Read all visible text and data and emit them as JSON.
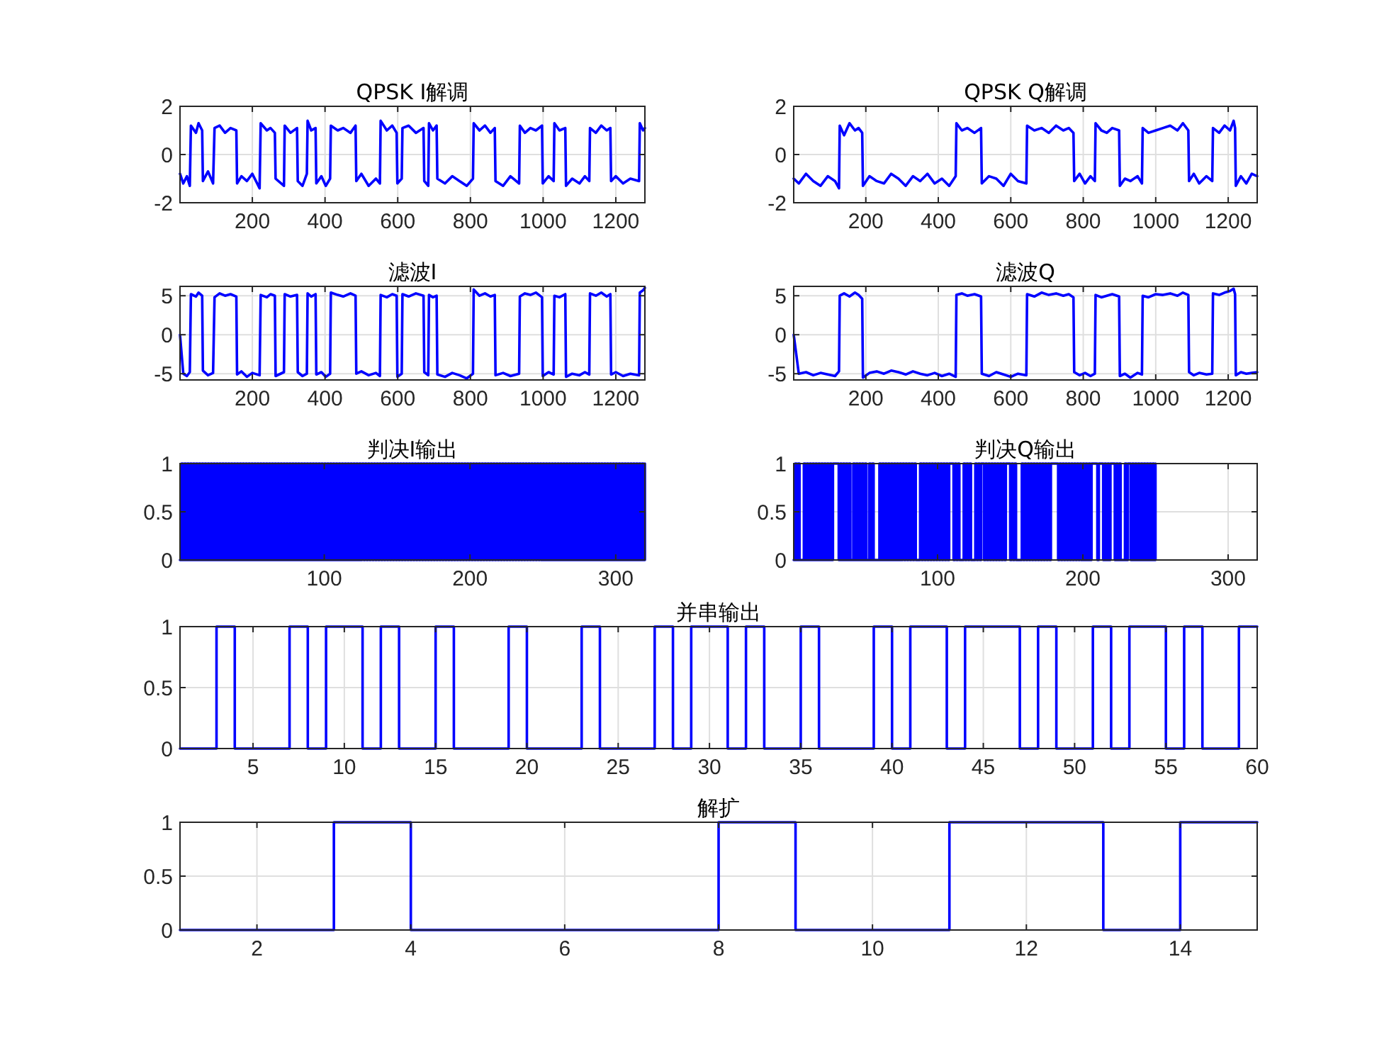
{
  "chart_data": [
    {
      "type": "line",
      "title": "QPSK I解调",
      "xlim": [
        1,
        1280
      ],
      "ylim": [
        -2,
        2
      ],
      "xticks": [
        200,
        400,
        600,
        800,
        1000,
        1200
      ],
      "yticks": [
        -2,
        0,
        2
      ],
      "grid": true,
      "x": [
        1,
        10,
        20,
        28,
        31,
        45,
        52,
        62,
        64,
        78,
        92,
        96,
        110,
        125,
        140,
        156,
        158,
        170,
        185,
        200,
        220,
        223,
        240,
        250,
        262,
        264,
        287,
        289,
        305,
        323,
        325,
        338,
        350,
        352,
        362,
        374,
        376,
        390,
        402,
        414,
        416,
        435,
        450,
        470,
        484,
        486,
        500,
        520,
        540,
        551,
        553,
        570,
        585,
        597,
        599,
        611,
        613,
        630,
        650,
        671,
        673,
        684,
        686,
        697,
        707,
        709,
        730,
        750,
        770,
        790,
        807,
        809,
        825,
        840,
        855,
        867,
        869,
        890,
        910,
        934,
        936,
        950,
        965,
        980,
        997,
        999,
        1015,
        1029,
        1031,
        1045,
        1061,
        1063,
        1080,
        1100,
        1115,
        1127,
        1129,
        1145,
        1160,
        1175,
        1185,
        1187,
        1200,
        1220,
        1240,
        1264,
        1266,
        1275,
        1280
      ],
      "series": [
        {
          "color": "#0000ff",
          "values": [
            -0.8,
            -1.2,
            -0.9,
            -1.3,
            1.2,
            0.9,
            1.3,
            1.0,
            -1.1,
            -0.7,
            -1.2,
            1.1,
            1.2,
            0.9,
            1.1,
            1.0,
            -1.2,
            -0.9,
            -1.1,
            -0.8,
            -1.4,
            1.3,
            1.0,
            1.1,
            0.9,
            -1.0,
            -1.3,
            1.2,
            0.9,
            1.1,
            -1.1,
            -1.3,
            -0.8,
            1.4,
            1.0,
            1.1,
            -1.2,
            -0.9,
            -1.3,
            -1.0,
            1.2,
            1.0,
            1.1,
            0.9,
            1.2,
            -1.1,
            -0.8,
            -1.3,
            -1.0,
            -1.2,
            1.4,
            1.0,
            1.2,
            0.9,
            -1.2,
            -1.0,
            1.1,
            1.2,
            0.9,
            1.1,
            -1.1,
            -1.3,
            1.3,
            1.0,
            1.2,
            -1.0,
            -1.2,
            -0.9,
            -1.1,
            -1.3,
            -1.0,
            1.3,
            1.0,
            1.2,
            0.9,
            1.1,
            -1.1,
            -1.3,
            -0.9,
            -1.2,
            1.2,
            0.9,
            1.1,
            1.0,
            1.2,
            -1.2,
            -0.9,
            -1.1,
            1.3,
            1.0,
            1.1,
            -1.3,
            -1.0,
            -1.2,
            -0.9,
            -1.1,
            1.1,
            0.9,
            1.2,
            1.0,
            1.1,
            -1.1,
            -0.9,
            -1.2,
            -1.0,
            -1.1,
            1.3,
            1.0,
            1.1
          ]
        }
      ]
    },
    {
      "type": "line",
      "title": "QPSK Q解调",
      "xlim": [
        1,
        1280
      ],
      "ylim": [
        -2,
        2
      ],
      "xticks": [
        200,
        400,
        600,
        800,
        1000,
        1200
      ],
      "yticks": [
        -2,
        0,
        2
      ],
      "grid": true,
      "x": [
        1,
        15,
        35,
        55,
        75,
        95,
        115,
        126,
        128,
        140,
        155,
        170,
        180,
        190,
        192,
        210,
        230,
        250,
        270,
        290,
        310,
        330,
        350,
        370,
        390,
        410,
        430,
        448,
        450,
        465,
        480,
        500,
        518,
        520,
        540,
        560,
        580,
        600,
        620,
        643,
        645,
        665,
        685,
        705,
        725,
        745,
        760,
        773,
        775,
        790,
        805,
        820,
        832,
        834,
        850,
        865,
        880,
        899,
        901,
        915,
        930,
        950,
        962,
        964,
        980,
        1000,
        1020,
        1040,
        1060,
        1075,
        1090,
        1092,
        1105,
        1120,
        1140,
        1156,
        1158,
        1175,
        1190,
        1205,
        1215,
        1219,
        1221,
        1235,
        1250,
        1265,
        1280
      ],
      "series": [
        {
          "color": "#0000ff",
          "values": [
            -1.0,
            -1.2,
            -0.8,
            -1.1,
            -1.3,
            -0.9,
            -1.1,
            -1.4,
            1.2,
            0.8,
            1.3,
            1.0,
            1.1,
            0.9,
            -1.3,
            -0.9,
            -1.1,
            -1.2,
            -0.8,
            -1.0,
            -1.3,
            -0.9,
            -1.1,
            -0.8,
            -1.2,
            -1.0,
            -1.3,
            -0.9,
            1.3,
            1.0,
            1.1,
            0.9,
            1.1,
            -1.2,
            -0.9,
            -1.0,
            -1.3,
            -0.8,
            -1.1,
            -1.2,
            1.2,
            1.0,
            1.1,
            0.9,
            1.2,
            1.0,
            1.1,
            0.9,
            -1.1,
            -0.8,
            -1.2,
            -0.9,
            -1.1,
            1.3,
            1.0,
            0.9,
            1.1,
            1.0,
            -1.3,
            -1.0,
            -1.1,
            -0.9,
            -1.2,
            1.1,
            0.9,
            1.0,
            1.1,
            1.2,
            1.0,
            1.3,
            1.0,
            -1.1,
            -0.8,
            -1.2,
            -0.9,
            -1.1,
            1.1,
            0.9,
            1.2,
            1.0,
            1.4,
            1.1,
            -1.3,
            -0.9,
            -1.2,
            -0.8,
            -0.9
          ]
        }
      ]
    },
    {
      "type": "line",
      "title": "滤波I",
      "xlim": [
        1,
        1280
      ],
      "ylim": [
        -5.8,
        6.2
      ],
      "xticks": [
        200,
        400,
        600,
        800,
        1000,
        1200
      ],
      "yticks": [
        -5,
        0,
        5
      ],
      "grid": true,
      "x": [
        1,
        10,
        20,
        28,
        31,
        45,
        52,
        62,
        64,
        78,
        92,
        96,
        110,
        125,
        140,
        156,
        158,
        170,
        185,
        200,
        220,
        223,
        240,
        250,
        262,
        264,
        287,
        289,
        305,
        323,
        325,
        338,
        350,
        352,
        362,
        374,
        376,
        390,
        402,
        414,
        416,
        435,
        450,
        470,
        484,
        486,
        500,
        520,
        540,
        551,
        553,
        570,
        585,
        597,
        599,
        611,
        613,
        630,
        650,
        671,
        673,
        684,
        686,
        697,
        707,
        709,
        730,
        750,
        770,
        790,
        807,
        809,
        825,
        840,
        855,
        867,
        869,
        890,
        910,
        934,
        936,
        950,
        965,
        980,
        997,
        999,
        1015,
        1029,
        1031,
        1045,
        1061,
        1063,
        1080,
        1100,
        1115,
        1127,
        1129,
        1145,
        1160,
        1175,
        1185,
        1187,
        1200,
        1220,
        1240,
        1264,
        1266,
        1275,
        1280
      ],
      "series": [
        {
          "color": "#0000ff",
          "values": [
            0,
            -5.0,
            -5.3,
            -4.8,
            5.2,
            4.9,
            5.4,
            5.0,
            -4.6,
            -5.2,
            -4.9,
            4.8,
            5.3,
            5.0,
            5.2,
            4.9,
            -5.1,
            -4.7,
            -5.4,
            -4.9,
            -5.2,
            5.1,
            4.8,
            5.2,
            5.0,
            -5.3,
            -4.8,
            5.2,
            4.9,
            5.1,
            -4.8,
            -5.3,
            -5.0,
            5.3,
            4.9,
            5.2,
            -5.1,
            -4.8,
            -5.4,
            -5.0,
            5.4,
            5.1,
            4.9,
            5.3,
            5.0,
            -5.0,
            -4.7,
            -5.2,
            -4.9,
            -5.3,
            5.1,
            4.8,
            5.2,
            5.0,
            -5.4,
            -5.0,
            5.2,
            4.9,
            5.3,
            5.0,
            -4.8,
            -5.2,
            5.1,
            4.8,
            5.0,
            -5.1,
            -5.4,
            -4.9,
            -5.2,
            -5.6,
            -5.0,
            5.8,
            5.0,
            5.3,
            4.9,
            5.1,
            -5.2,
            -4.9,
            -5.3,
            -5.0,
            4.9,
            5.3,
            5.1,
            5.4,
            4.8,
            -5.3,
            -4.8,
            -5.1,
            5.0,
            4.8,
            5.2,
            -5.4,
            -5.0,
            -5.2,
            -4.8,
            -5.1,
            5.3,
            5.0,
            5.4,
            4.9,
            5.2,
            -5.1,
            -4.8,
            -5.3,
            -5.0,
            -5.2,
            5.4,
            5.7,
            6.0
          ]
        }
      ]
    },
    {
      "type": "line",
      "title": "滤波Q",
      "xlim": [
        1,
        1280
      ],
      "ylim": [
        -5.8,
        6.2
      ],
      "xticks": [
        200,
        400,
        600,
        800,
        1000,
        1200
      ],
      "yticks": [
        -5,
        0,
        5
      ],
      "grid": true,
      "x": [
        1,
        15,
        35,
        55,
        75,
        95,
        115,
        126,
        128,
        140,
        155,
        170,
        180,
        190,
        192,
        210,
        230,
        250,
        270,
        290,
        310,
        330,
        350,
        370,
        390,
        410,
        430,
        448,
        450,
        465,
        480,
        500,
        518,
        520,
        540,
        560,
        580,
        600,
        620,
        643,
        645,
        665,
        685,
        705,
        725,
        745,
        760,
        773,
        775,
        790,
        805,
        820,
        832,
        834,
        850,
        865,
        880,
        899,
        901,
        915,
        930,
        950,
        962,
        964,
        980,
        1000,
        1020,
        1040,
        1060,
        1075,
        1090,
        1092,
        1105,
        1120,
        1140,
        1156,
        1158,
        1175,
        1190,
        1205,
        1215,
        1219,
        1221,
        1235,
        1250,
        1265,
        1280
      ],
      "series": [
        {
          "color": "#0000ff",
          "values": [
            0,
            -5.0,
            -4.8,
            -5.2,
            -4.9,
            -5.1,
            -5.3,
            -4.7,
            5.0,
            5.3,
            4.9,
            5.4,
            5.1,
            4.6,
            -5.5,
            -4.9,
            -4.7,
            -5.0,
            -4.6,
            -4.8,
            -5.1,
            -4.7,
            -5.0,
            -5.2,
            -4.9,
            -5.3,
            -5.0,
            -5.4,
            5.1,
            5.3,
            5.0,
            5.2,
            4.9,
            -5.0,
            -5.3,
            -4.8,
            -5.1,
            -5.4,
            -5.0,
            -5.2,
            5.2,
            4.9,
            5.4,
            5.1,
            5.3,
            5.0,
            5.2,
            4.8,
            -4.8,
            -5.2,
            -4.9,
            -5.3,
            -5.0,
            5.1,
            4.8,
            5.0,
            5.2,
            4.9,
            -5.3,
            -5.0,
            -5.5,
            -4.9,
            -5.1,
            5.0,
            4.8,
            5.2,
            5.1,
            5.3,
            5.0,
            5.4,
            5.1,
            -4.8,
            -5.2,
            -4.9,
            -5.1,
            -5.0,
            5.3,
            5.1,
            5.4,
            5.6,
            5.9,
            5.2,
            -5.2,
            -4.8,
            -5.0,
            -4.9,
            -4.8
          ]
        }
      ]
    },
    {
      "type": "step",
      "title": "判决I输出",
      "xlim": [
        1,
        320
      ],
      "ylim": [
        0,
        1
      ],
      "xticks": [
        100,
        200,
        300
      ],
      "yticks": [
        0,
        0.5,
        1
      ],
      "grid": true,
      "x": [
        1,
        2,
        3,
        4,
        5,
        6,
        7,
        8,
        9,
        10,
        11,
        12,
        13,
        14,
        15,
        16,
        17,
        18,
        19,
        20,
        21,
        22,
        23,
        24,
        25,
        26,
        27,
        28,
        29,
        30,
        31,
        32,
        33,
        34,
        35,
        36,
        37,
        38,
        39,
        40,
        41,
        42,
        43,
        44,
        45,
        46,
        47,
        48,
        49,
        50,
        51,
        52,
        53,
        54,
        55,
        56,
        57,
        58,
        59,
        60,
        61,
        62,
        63,
        64,
        65,
        66,
        67,
        68,
        69,
        70,
        71,
        72,
        73,
        74,
        75,
        76,
        77,
        78,
        79,
        80,
        81,
        82,
        83,
        84,
        85,
        86,
        87,
        88,
        89,
        90,
        91,
        92,
        93,
        94,
        95,
        96,
        97,
        98,
        99,
        100,
        101,
        102,
        103,
        104,
        105,
        106,
        107,
        108,
        109,
        110,
        111,
        112,
        113,
        114,
        115,
        116,
        117,
        118,
        119,
        120,
        121,
        122,
        123,
        124,
        125,
        126,
        127,
        128,
        129,
        130,
        131,
        132,
        133,
        134,
        135,
        136,
        137,
        138,
        139,
        140,
        141,
        142,
        143,
        144,
        145,
        146,
        147,
        148,
        149,
        150,
        151,
        152,
        153,
        154,
        155,
        156,
        157,
        158,
        159,
        160,
        161,
        162,
        163,
        164,
        165,
        166,
        167,
        168,
        169,
        170,
        171,
        172,
        173,
        174,
        175,
        176,
        177,
        178,
        179,
        180,
        181,
        182,
        183,
        184,
        185,
        186,
        187,
        188,
        189,
        190,
        191,
        192,
        193,
        194,
        195,
        196,
        197,
        198,
        199,
        200,
        201,
        202,
        203,
        204,
        205,
        206,
        207,
        208,
        209,
        210,
        211,
        212,
        213,
        214,
        215,
        216,
        217,
        218,
        219,
        220,
        221,
        222,
        223,
        224,
        225,
        226,
        227,
        228,
        229,
        230,
        231,
        232,
        233,
        234,
        235,
        236,
        237,
        238,
        239,
        240,
        241,
        242,
        243,
        244,
        245,
        246,
        247,
        248,
        249,
        250,
        251,
        252,
        253,
        254,
        255,
        256,
        257,
        258,
        259,
        260,
        261,
        262,
        263,
        264,
        265,
        266,
        267,
        268,
        269,
        270,
        271,
        272,
        273,
        274,
        275,
        276,
        277,
        278,
        279,
        280,
        281,
        282,
        283,
        284,
        285,
        286,
        287,
        288,
        289,
        290,
        291,
        292,
        293,
        294,
        295,
        296,
        297,
        298,
        299,
        300,
        301,
        302,
        303,
        304,
        305,
        306,
        307,
        308,
        309,
        310,
        311,
        312,
        313,
        314,
        315,
        316,
        317,
        318,
        319,
        320
      ],
      "series": [
        {
          "color": "#0000ff",
          "values": [
            0,
            1,
            0,
            1,
            0,
            1,
            0,
            1,
            0,
            1,
            0,
            1,
            0,
            1,
            0,
            1,
            0,
            1,
            0,
            1,
            0,
            1,
            0,
            1,
            0,
            1,
            0,
            1,
            0,
            1,
            0,
            1,
            0,
            1,
            0,
            1,
            0,
            1,
            0,
            1,
            0,
            1,
            0,
            1,
            0,
            1,
            0,
            1,
            0,
            1,
            0,
            1,
            0,
            1,
            0,
            1,
            0,
            1,
            0,
            1,
            0,
            1,
            0,
            1,
            0,
            1,
            0,
            1,
            0,
            1,
            0,
            1,
            0,
            1,
            0,
            1,
            0,
            1,
            0,
            1,
            0,
            1,
            0,
            1,
            0,
            1,
            0,
            1,
            0,
            1,
            0,
            1,
            0,
            1,
            0,
            1,
            0,
            1,
            0,
            1,
            0,
            1,
            0,
            1,
            0,
            1,
            0,
            1,
            0,
            1,
            0,
            1,
            0,
            1,
            0,
            1,
            0,
            1,
            0,
            1,
            0,
            1,
            0,
            1,
            0,
            1,
            0,
            1,
            0,
            1,
            0,
            1,
            0,
            1,
            0,
            1,
            0,
            1,
            0,
            1,
            0,
            1,
            0,
            1,
            0,
            1,
            0,
            1,
            0,
            1,
            0,
            1,
            0,
            1,
            0,
            1,
            0,
            1,
            0,
            1,
            0,
            1,
            0,
            1,
            0,
            1,
            0,
            1,
            0,
            1,
            0,
            1,
            0,
            1,
            0,
            1,
            0,
            1,
            0,
            1,
            0,
            1,
            0,
            1,
            0,
            1,
            0,
            1,
            0,
            1,
            0,
            1,
            0,
            1,
            0,
            1,
            0,
            1,
            0,
            1,
            0,
            1,
            0,
            1,
            0,
            1,
            0,
            1,
            0,
            1,
            0,
            1,
            0,
            1,
            0,
            1,
            0,
            1,
            0,
            1,
            0,
            1,
            0,
            1,
            0,
            1,
            0,
            1,
            0,
            1,
            0,
            1,
            0,
            1,
            0,
            1,
            0,
            1,
            0,
            1,
            0,
            1,
            0,
            1,
            0,
            1,
            0,
            1,
            0,
            1,
            0,
            1,
            0,
            1,
            0,
            1,
            0,
            1,
            0,
            1,
            0,
            1,
            0,
            1,
            0,
            1,
            0,
            1,
            0,
            1,
            0,
            1,
            0,
            1,
            0,
            1,
            0,
            1,
            0,
            1,
            0,
            1,
            0,
            1,
            0,
            1,
            0,
            1,
            0,
            1,
            0,
            1,
            0,
            1,
            0,
            1,
            0,
            1,
            0,
            1,
            0,
            1,
            0,
            1,
            0,
            1,
            0,
            1,
            0,
            1,
            0,
            1,
            0,
            1,
            0,
            1,
            0,
            1,
            0,
            1
          ]
        }
      ]
    },
    {
      "type": "step",
      "title": "判决Q输出",
      "xlim": [
        1,
        320
      ],
      "ylim": [
        0,
        1
      ],
      "xticks": [
        100,
        200,
        300
      ],
      "yticks": [
        0,
        0.5,
        1
      ],
      "grid": true,
      "x": [
        1,
        2,
        3,
        4,
        5,
        6,
        7,
        8,
        9,
        10,
        11,
        12,
        13,
        14,
        15,
        16,
        17,
        18,
        19,
        20,
        21,
        22,
        23,
        24,
        25,
        26,
        27,
        28,
        29,
        30,
        31,
        32,
        33,
        34,
        35,
        36,
        37,
        38,
        39,
        40,
        41,
        42,
        43,
        44,
        45,
        46,
        47,
        48,
        49,
        50,
        51,
        52,
        53,
        54,
        55,
        56,
        57,
        58,
        59,
        60,
        61,
        62,
        63,
        64,
        65,
        66,
        67,
        68,
        69,
        70,
        71,
        72,
        73,
        74,
        75,
        76,
        77,
        78,
        79,
        80,
        81,
        82,
        83,
        84,
        85,
        86,
        87,
        88,
        89,
        90,
        91,
        92,
        93,
        94,
        95,
        96,
        97,
        98,
        99,
        100,
        101,
        102,
        103,
        104,
        105,
        106,
        107,
        108,
        109,
        110,
        111,
        112,
        113,
        114,
        115,
        116,
        117,
        118,
        119,
        120,
        121,
        122,
        123,
        124,
        125,
        126,
        127,
        128,
        129,
        130,
        131,
        132,
        133,
        134,
        135,
        136,
        137,
        138,
        139,
        140,
        141,
        142,
        143,
        144,
        145,
        146,
        147,
        148,
        149,
        150,
        151,
        152,
        153,
        154,
        155,
        156,
        157,
        158,
        159,
        160,
        161,
        162,
        163,
        164,
        165,
        166,
        167,
        168,
        169,
        170,
        171,
        172,
        173,
        174,
        175,
        176,
        177,
        178,
        179,
        180,
        181,
        182,
        183,
        184,
        185,
        186,
        187,
        188,
        189,
        190,
        191,
        192,
        193,
        194,
        195,
        196,
        197,
        198,
        199,
        200,
        201,
        202,
        203,
        204,
        205,
        206,
        207,
        208,
        209,
        210,
        211,
        212,
        213,
        214,
        215,
        216,
        217,
        218,
        219,
        220,
        221,
        222,
        223,
        224,
        225,
        226,
        227,
        228,
        229,
        230,
        231,
        232,
        233,
        234,
        235,
        236,
        237,
        238,
        239,
        240,
        241,
        242,
        243,
        244,
        245,
        246,
        247,
        248,
        249,
        250
      ],
      "series": [
        {
          "color": "#0000ff",
          "values": [
            0,
            1,
            0,
            1,
            0,
            0,
            0,
            1,
            0,
            1,
            0,
            1,
            0,
            1,
            0,
            1,
            0,
            1,
            0,
            1,
            0,
            1,
            0,
            1,
            0,
            1,
            0,
            1,
            1,
            1,
            1,
            0,
            1,
            0,
            1,
            0,
            1,
            0,
            1,
            0,
            0,
            1,
            0,
            1,
            0,
            1,
            0,
            1,
            0,
            1,
            0,
            0,
            1,
            0,
            1,
            0,
            0,
            0,
            0,
            1,
            0,
            1,
            0,
            1,
            0,
            1,
            0,
            1,
            0,
            1,
            0,
            1,
            0,
            1,
            0,
            1,
            0,
            1,
            0,
            1,
            0,
            1,
            0,
            1,
            0,
            0,
            0,
            1,
            0,
            1,
            0,
            1,
            0,
            1,
            0,
            1,
            0,
            1,
            0,
            1,
            0,
            1,
            0,
            1,
            0,
            1,
            0,
            1,
            1,
            1,
            0,
            1,
            0,
            1,
            0,
            0,
            0,
            1,
            0,
            1,
            0,
            1,
            0,
            0,
            0,
            1,
            0,
            1,
            0,
            1,
            1,
            0,
            1,
            0,
            1,
            0,
            1,
            0,
            1,
            0,
            1,
            0,
            1,
            0,
            1,
            0,
            1,
            1,
            1,
            0,
            1,
            0,
            1,
            0,
            0,
            0,
            0,
            1,
            0,
            1,
            0,
            1,
            0,
            1,
            0,
            1,
            0,
            1,
            0,
            1,
            0,
            1,
            0,
            1,
            0,
            1,
            0,
            1,
            1,
            1,
            1,
            1,
            0,
            1,
            0,
            1,
            0,
            1,
            0,
            1,
            0,
            1,
            0,
            1,
            0,
            1,
            0,
            1,
            0,
            1,
            0,
            1,
            0,
            1,
            0,
            1,
            1,
            1,
            1,
            0,
            1,
            1,
            1,
            0,
            1,
            0,
            1,
            0,
            1,
            1,
            1,
            0,
            1,
            0,
            1,
            0,
            0,
            0,
            1,
            0,
            1,
            1,
            0,
            1,
            0,
            1,
            0,
            1,
            0,
            1,
            0,
            1,
            0,
            1,
            0,
            1,
            0,
            1,
            0,
            1
          ]
        }
      ]
    },
    {
      "type": "step",
      "title": "并串输出",
      "xlim": [
        1,
        60
      ],
      "ylim": [
        0,
        1
      ],
      "xticks": [
        5,
        10,
        15,
        20,
        25,
        30,
        35,
        40,
        45,
        50,
        55,
        60
      ],
      "yticks": [
        0,
        0.5,
        1
      ],
      "grid": true,
      "x": [
        1,
        2,
        3,
        4,
        5,
        6,
        7,
        8,
        9,
        10,
        11,
        12,
        13,
        14,
        15,
        16,
        17,
        18,
        19,
        20,
        21,
        22,
        23,
        24,
        25,
        26,
        27,
        28,
        29,
        30,
        31,
        32,
        33,
        34,
        35,
        36,
        37,
        38,
        39,
        40,
        41,
        42,
        43,
        44,
        45,
        46,
        47,
        48,
        49,
        50,
        51,
        52,
        53,
        54,
        55,
        56,
        57,
        58,
        59,
        60
      ],
      "series": [
        {
          "color": "#0000ff",
          "values": [
            0,
            0,
            1,
            0,
            0,
            0,
            1,
            0,
            1,
            1,
            0,
            1,
            0,
            0,
            1,
            0,
            0,
            0,
            1,
            0,
            0,
            0,
            1,
            0,
            0,
            0,
            1,
            0,
            1,
            1,
            0,
            1,
            0,
            0,
            1,
            0,
            0,
            0,
            1,
            0,
            1,
            1,
            0,
            1,
            1,
            1,
            0,
            1,
            0,
            0,
            1,
            0,
            1,
            1,
            0,
            1,
            0,
            0,
            1,
            1
          ]
        }
      ]
    },
    {
      "type": "step",
      "title": "解扩",
      "xlim": [
        1,
        15
      ],
      "ylim": [
        0,
        1
      ],
      "xticks": [
        2,
        4,
        6,
        8,
        10,
        12,
        14
      ],
      "yticks": [
        0,
        0.5,
        1
      ],
      "grid": true,
      "x": [
        1,
        2,
        3,
        4,
        5,
        6,
        7,
        8,
        9,
        10,
        11,
        12,
        13,
        14,
        15
      ],
      "series": [
        {
          "color": "#0000ff",
          "values": [
            0,
            0,
            1,
            0,
            0,
            0,
            0,
            1,
            0,
            0,
            1,
            1,
            0,
            1,
            1
          ]
        }
      ]
    }
  ]
}
